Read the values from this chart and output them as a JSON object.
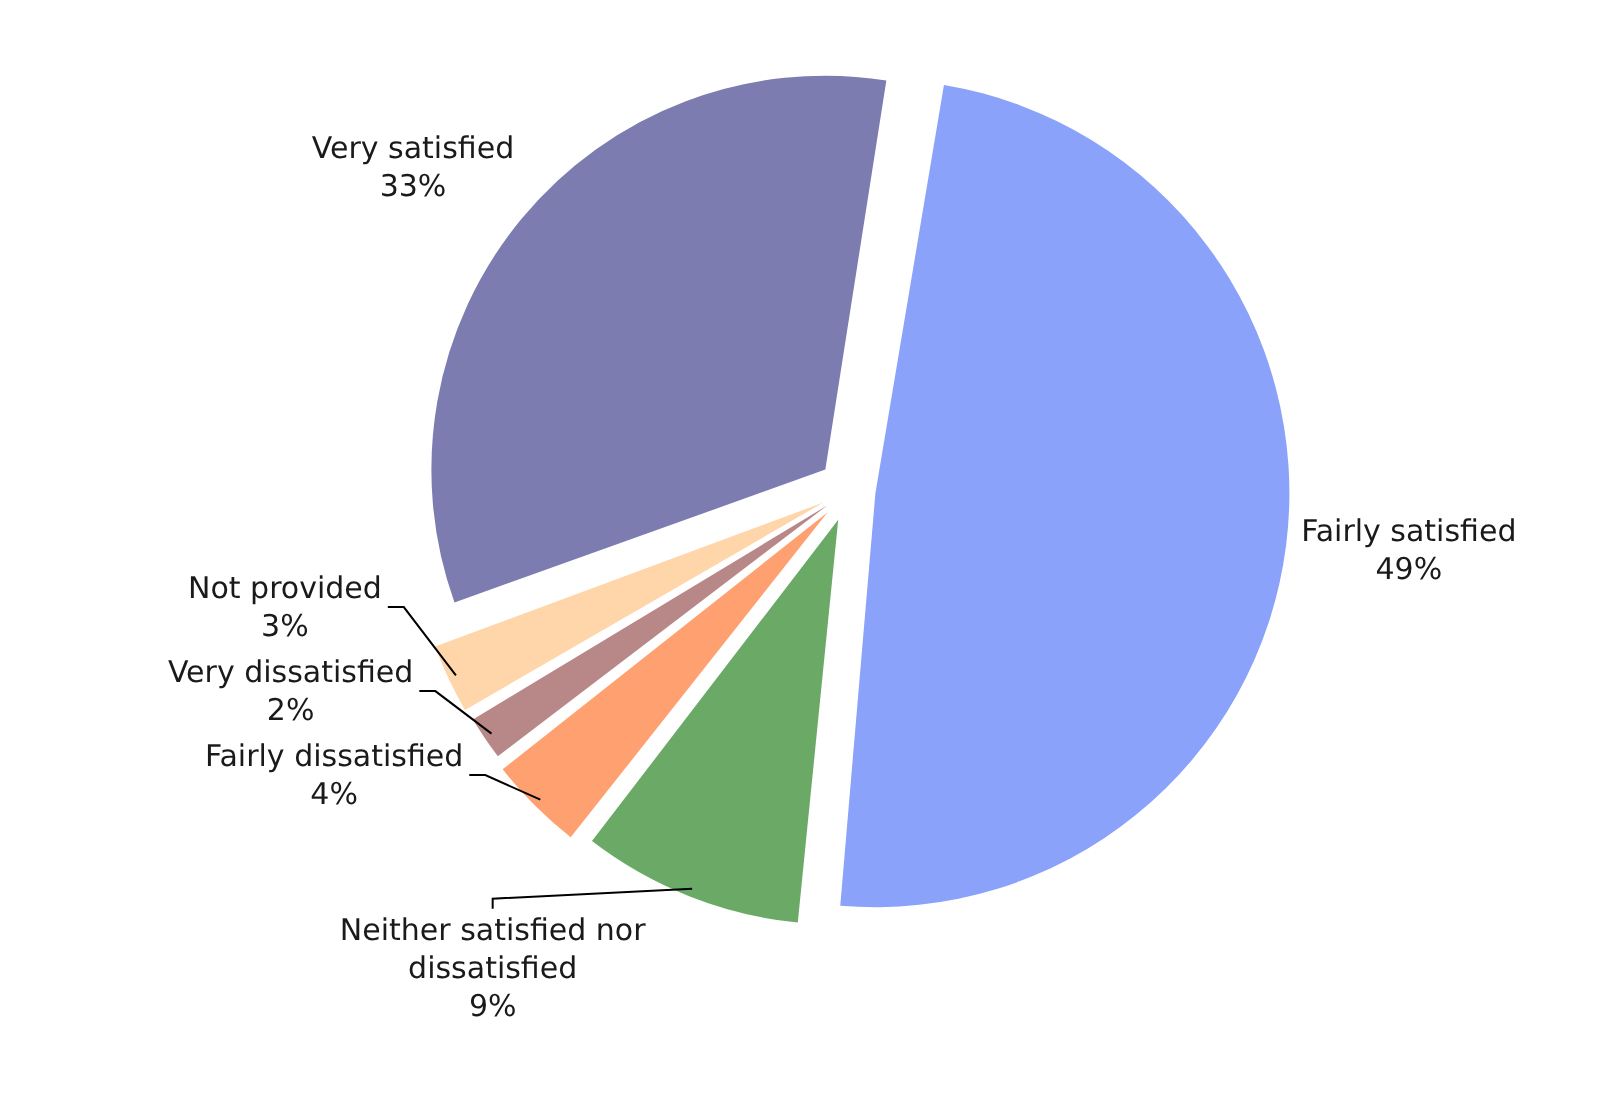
{
  "chart_data": {
    "type": "pie",
    "categories": [
      "Fairly satisfied",
      "Neither satisfied nor dissatisfied",
      "Fairly dissatisfied",
      "Very dissatisfied",
      "Not provided",
      "Very satisfied"
    ],
    "values": [
      49,
      9,
      4,
      2,
      3,
      33
    ],
    "colors": [
      "#8aa2fa",
      "#6aaa66",
      "#ffa070",
      "#b88888",
      "#ffd5aa",
      "#7c7cb0"
    ],
    "value_labels": [
      "49%",
      "9%",
      "4%",
      "2%",
      "3%",
      "33%"
    ],
    "legend": false
  }
}
